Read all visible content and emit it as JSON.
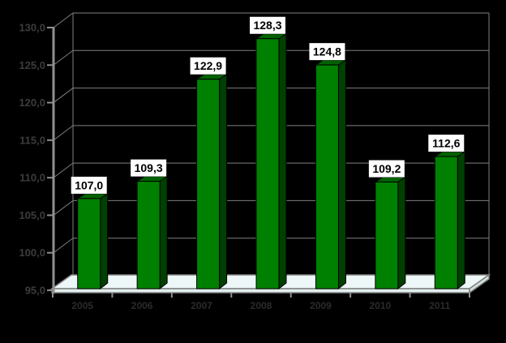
{
  "chart_data": {
    "type": "bar",
    "subtype": "3d-column",
    "title": "",
    "xlabel": "",
    "ylabel": "",
    "categories": [
      "2005",
      "2006",
      "2007",
      "2008",
      "2009",
      "2010",
      "2011"
    ],
    "values": [
      107.0,
      109.3,
      122.9,
      128.3,
      124.8,
      109.2,
      112.6
    ],
    "value_labels": [
      "107,0",
      "109,3",
      "122,9",
      "128,3",
      "124,8",
      "109,2",
      "112,6"
    ],
    "ylim": [
      95,
      130
    ],
    "y_tick_step": 5,
    "y_ticks": [
      95,
      100,
      105,
      110,
      115,
      120,
      125,
      130
    ],
    "y_tick_labels": [
      "95,0",
      "100,0",
      "105,0",
      "110,0",
      "115,0",
      "120,0",
      "125,0",
      "130,0"
    ],
    "grid": true,
    "legend": "none",
    "colors": {
      "background": "#000000",
      "bar_front": "#008000",
      "bar_top": "#006200",
      "bar_side": "#004000",
      "bar_outline": "#000000",
      "gridline": "#7F7F7F",
      "axis_line": "#8F8F8F",
      "floor_top": "#EDF7F7",
      "floor_front": "#E2EEEE",
      "floor_right": "#D5E2E2",
      "floor_edge": "#808080",
      "value_label_bg": "#FFFFFF",
      "value_label_text": "#000000",
      "y_axis_label_text": "#3C3C3C",
      "x_axis_label_text": "#2B2B2B"
    }
  }
}
